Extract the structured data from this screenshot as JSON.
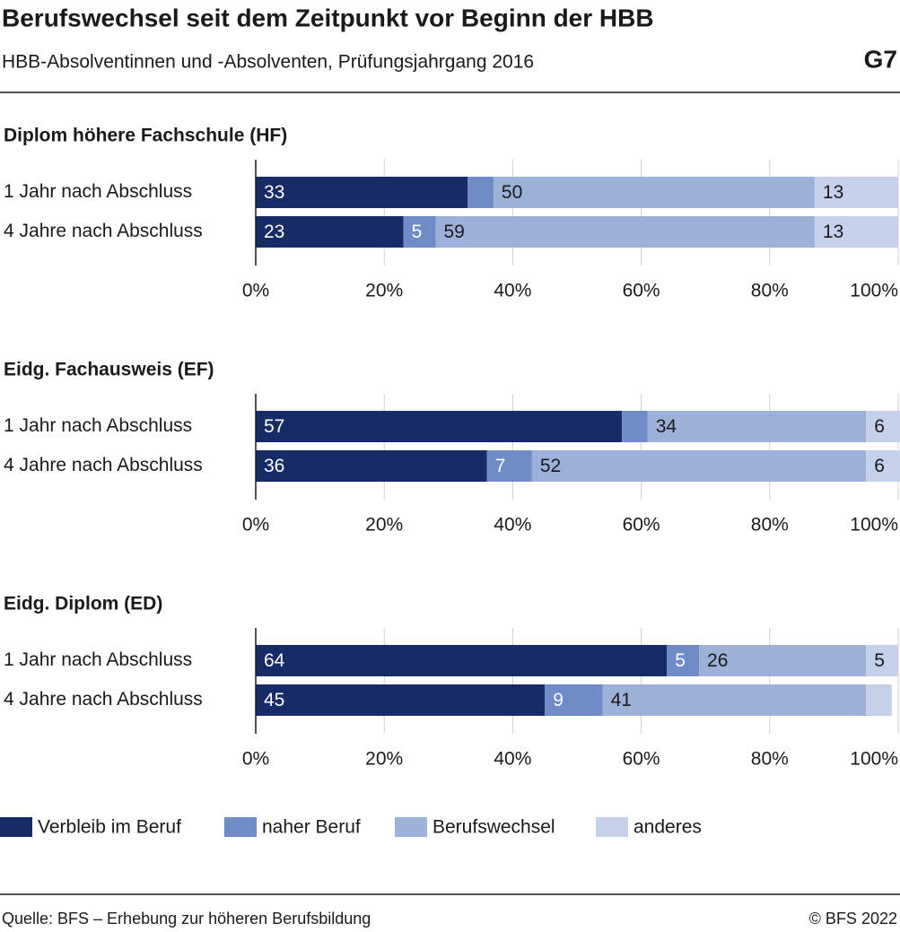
{
  "header": {
    "title": "Berufswechsel seit dem Zeitpunkt vor Beginn der HBB",
    "subtitle": "HBB-Absolventinnen und -Absolventen, Prüfungsjahrgang 2016",
    "code": "G7"
  },
  "chart_data": [
    {
      "type": "bar",
      "orientation": "horizontal",
      "stacked": true,
      "title": "Diplom höhere Fachschule (HF)",
      "categories": [
        "1 Jahr nach Abschluss",
        "4 Jahre nach Abschluss"
      ],
      "series": [
        {
          "name": "Verbleib im Beruf",
          "color": "#172b66",
          "values": [
            33,
            23
          ]
        },
        {
          "name": "naher Beruf",
          "color": "#6f8bc8",
          "values": [
            4,
            5
          ]
        },
        {
          "name": "Berufswechsel",
          "color": "#9db0da",
          "values": [
            50,
            59
          ]
        },
        {
          "name": "anderes",
          "color": "#c5d1ea",
          "values": [
            13,
            13
          ]
        }
      ],
      "xlim": [
        0,
        100
      ],
      "xticks": [
        {
          "value": 0,
          "label": "0%"
        },
        {
          "value": 20,
          "label": "20%"
        },
        {
          "value": 40,
          "label": "40%"
        },
        {
          "value": 60,
          "label": "60%"
        },
        {
          "value": 80,
          "label": "80%"
        },
        {
          "value": 100,
          "label": "100%"
        }
      ],
      "grid": true
    },
    {
      "type": "bar",
      "orientation": "horizontal",
      "stacked": true,
      "title": "Eidg. Fachausweis (EF)",
      "categories": [
        "1 Jahr nach Abschluss",
        "4 Jahre nach Abschluss"
      ],
      "series": [
        {
          "name": "Verbleib im Beruf",
          "color": "#172b66",
          "values": [
            57,
            36
          ]
        },
        {
          "name": "naher Beruf",
          "color": "#6f8bc8",
          "values": [
            4,
            7
          ]
        },
        {
          "name": "Berufswechsel",
          "color": "#9db0da",
          "values": [
            34,
            52
          ]
        },
        {
          "name": "anderes",
          "color": "#c5d1ea",
          "values": [
            6,
            6
          ]
        }
      ],
      "xlim": [
        0,
        100
      ],
      "xticks": [
        {
          "value": 0,
          "label": "0%"
        },
        {
          "value": 20,
          "label": "20%"
        },
        {
          "value": 40,
          "label": "40%"
        },
        {
          "value": 60,
          "label": "60%"
        },
        {
          "value": 80,
          "label": "80%"
        },
        {
          "value": 100,
          "label": "100%"
        }
      ],
      "grid": true
    },
    {
      "type": "bar",
      "orientation": "horizontal",
      "stacked": true,
      "title": "Eidg. Diplom (ED)",
      "categories": [
        "1 Jahr nach Abschluss",
        "4 Jahre nach Abschluss"
      ],
      "series": [
        {
          "name": "Verbleib im Beruf",
          "color": "#172b66",
          "values": [
            64,
            45
          ]
        },
        {
          "name": "naher Beruf",
          "color": "#6f8bc8",
          "values": [
            5,
            9
          ]
        },
        {
          "name": "Berufswechsel",
          "color": "#9db0da",
          "values": [
            26,
            41
          ]
        },
        {
          "name": "anderes",
          "color": "#c5d1ea",
          "values": [
            5,
            4
          ]
        }
      ],
      "xlim": [
        0,
        100
      ],
      "xticks": [
        {
          "value": 0,
          "label": "0%"
        },
        {
          "value": 20,
          "label": "20%"
        },
        {
          "value": 40,
          "label": "40%"
        },
        {
          "value": 60,
          "label": "60%"
        },
        {
          "value": 80,
          "label": "80%"
        },
        {
          "value": 100,
          "label": "100%"
        }
      ],
      "grid": true
    }
  ],
  "footer": {
    "source": "Quelle: BFS – Erhebung zur höheren Berufsbildung",
    "copyright": "© BFS 2022"
  }
}
